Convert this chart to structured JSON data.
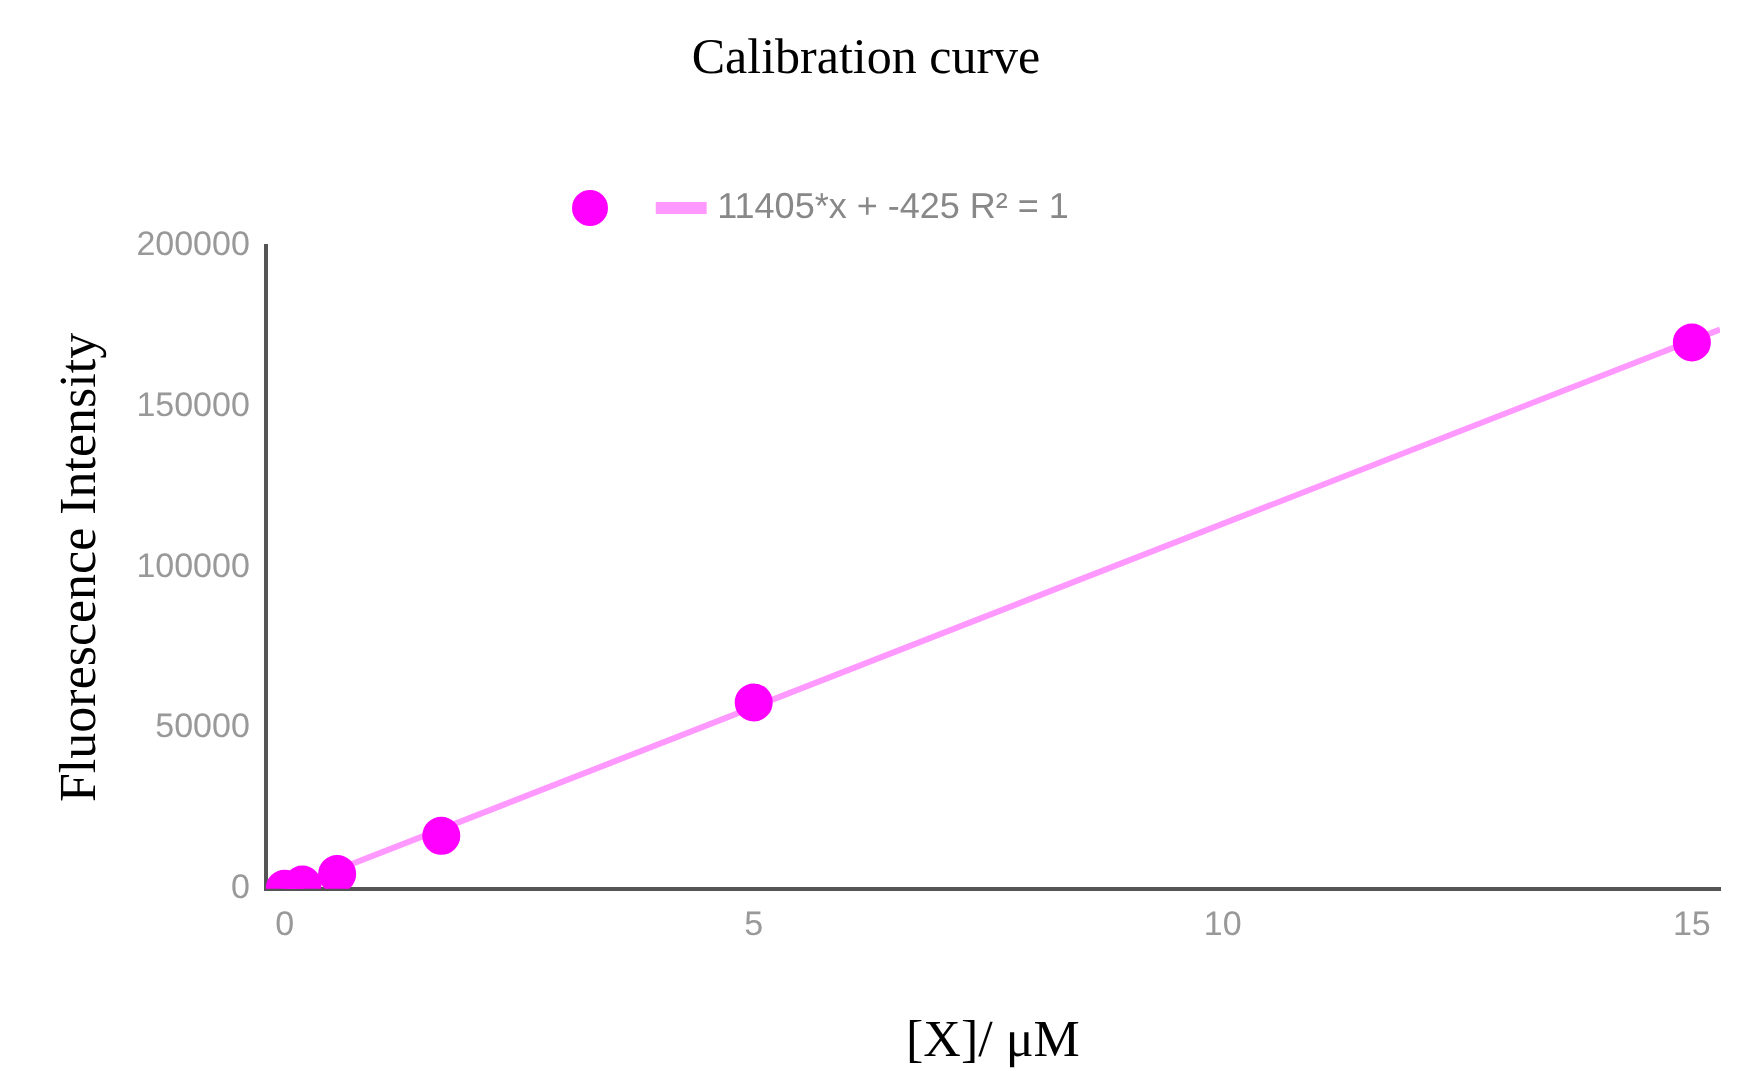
{
  "chart_data": {
    "type": "scatter",
    "title": "Calibration curve",
    "xlabel": "[X]/ μM",
    "ylabel": "Fluorescence Intensity",
    "xlim": [
      -0.2,
      15.3
    ],
    "xticks": [
      0,
      5,
      10,
      15
    ],
    "ylim": [
      0,
      200000
    ],
    "yticks": [
      0,
      50000,
      100000,
      150000,
      200000
    ],
    "grid": false,
    "legend": "top",
    "marker": "circle",
    "series": [
      {
        "type": "scatter",
        "color": "#ff00ff",
        "x": [
          0,
          0.19,
          0.56,
          1.67,
          5,
          15
        ],
        "values": [
          0,
          1300,
          4600,
          16500,
          58000,
          170000
        ]
      },
      {
        "type": "line",
        "name": "11405*x + -425 R² = 1",
        "color": "#ff99ff",
        "marker": "none",
        "x": [
          0.04,
          15.3
        ],
        "values": [
          0,
          174000
        ]
      }
    ]
  }
}
